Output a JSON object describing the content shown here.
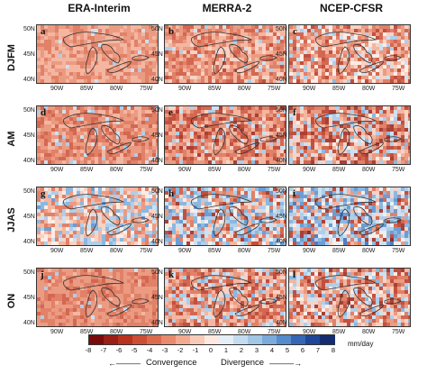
{
  "columns": [
    "ERA-Interim",
    "MERRA-2",
    "NCEP-CFSR"
  ],
  "rows": [
    "DJFM",
    "AM",
    "JJAS",
    "ON"
  ],
  "panel_letters": [
    "a",
    "b",
    "c",
    "d",
    "e",
    "f",
    "g",
    "h",
    "i",
    "j",
    "k",
    "l"
  ],
  "lat_ticks": [
    "50N",
    "45N",
    "40N"
  ],
  "lon_ticks": [
    "90W",
    "85W",
    "80W",
    "75W"
  ],
  "colorbar": {
    "labels": [
      "-8",
      "-7",
      "-6",
      "-5",
      "-4",
      "-3",
      "-2",
      "-1",
      "0",
      "1",
      "2",
      "3",
      "4",
      "5",
      "6",
      "7",
      "8"
    ],
    "units": "mm/day",
    "colors": [
      "#7a0b0b",
      "#9b1f14",
      "#b8321d",
      "#cc4e34",
      "#dc6b4e",
      "#e88a6d",
      "#f2aa91",
      "#f8cbb9",
      "#fde9e1",
      "#e4eff7",
      "#c5dcef",
      "#a1c6e6",
      "#7aabda",
      "#548ccc",
      "#3468b6",
      "#1f4697",
      "#152d70"
    ],
    "left_label": "Convergence",
    "right_label": "Divergence"
  }
}
